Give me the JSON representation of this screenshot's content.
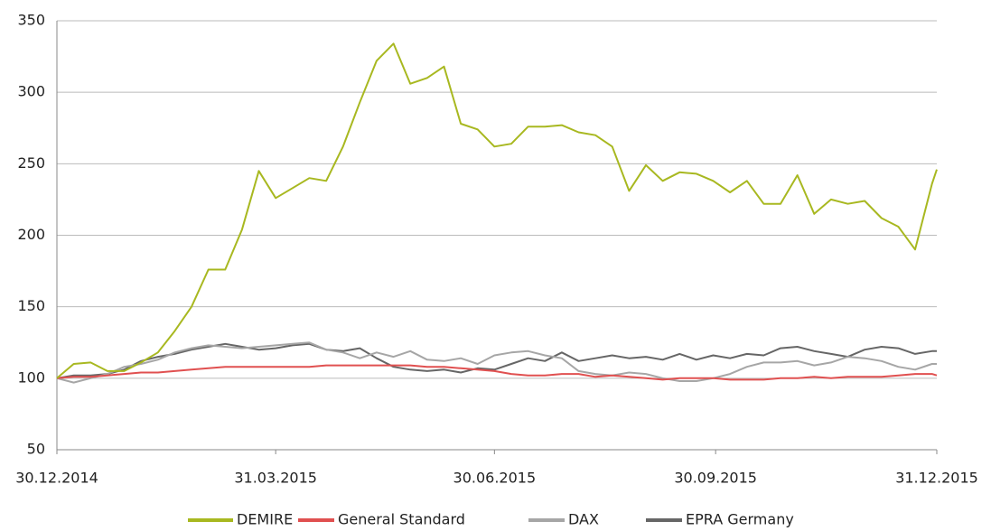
{
  "chart_data": {
    "type": "line",
    "x": [
      "30.12.2014",
      "06.01.2015",
      "13.01.2015",
      "20.01.2015",
      "27.01.2015",
      "03.02.2015",
      "10.02.2015",
      "17.02.2015",
      "24.02.2015",
      "03.03.2015",
      "10.03.2015",
      "17.03.2015",
      "24.03.2015",
      "31.03.2015",
      "07.04.2015",
      "14.04.2015",
      "21.04.2015",
      "28.04.2015",
      "05.05.2015",
      "12.05.2015",
      "19.05.2015",
      "26.05.2015",
      "02.06.2015",
      "09.06.2015",
      "16.06.2015",
      "23.06.2015",
      "30.06.2015",
      "07.07.2015",
      "14.07.2015",
      "21.07.2015",
      "28.07.2015",
      "04.08.2015",
      "11.08.2015",
      "18.08.2015",
      "25.08.2015",
      "01.09.2015",
      "08.09.2015",
      "15.09.2015",
      "22.09.2015",
      "29.09.2015",
      "06.10.2015",
      "13.10.2015",
      "20.10.2015",
      "27.10.2015",
      "03.11.2015",
      "10.11.2015",
      "17.11.2015",
      "24.11.2015",
      "01.12.2015",
      "08.12.2015",
      "15.12.2015",
      "22.12.2015",
      "29.12.2015",
      "31.12.2015"
    ],
    "series": [
      {
        "name": "DEMIRE",
        "color": "#a8b820",
        "values": [
          100,
          110,
          111,
          105,
          105,
          111,
          118,
          133,
          150,
          176,
          176,
          204,
          245,
          226,
          233,
          240,
          238,
          262,
          293,
          322,
          334,
          306,
          310,
          318,
          278,
          274,
          262,
          264,
          276,
          276,
          277,
          272,
          270,
          262,
          231,
          249,
          238,
          244,
          243,
          238,
          230,
          238,
          222,
          222,
          242,
          215,
          225,
          222,
          224,
          212,
          206,
          190,
          236,
          246
        ]
      },
      {
        "name": "General Standard",
        "color": "#e05050",
        "values": [
          100,
          101,
          101,
          102,
          103,
          104,
          104,
          105,
          106,
          107,
          108,
          108,
          108,
          108,
          108,
          108,
          109,
          109,
          109,
          109,
          109,
          109,
          108,
          108,
          107,
          106,
          105,
          103,
          102,
          102,
          103,
          103,
          101,
          102,
          101,
          100,
          99,
          100,
          100,
          100,
          99,
          99,
          99,
          100,
          100,
          101,
          100,
          101,
          101,
          101,
          102,
          103,
          103,
          102
        ]
      },
      {
        "name": "DAX",
        "color": "#a6a6a6",
        "values": [
          100,
          97,
          100,
          103,
          108,
          110,
          113,
          118,
          121,
          123,
          122,
          121,
          122,
          123,
          124,
          125,
          120,
          118,
          114,
          118,
          115,
          119,
          113,
          112,
          114,
          110,
          116,
          118,
          119,
          116,
          114,
          105,
          103,
          102,
          104,
          103,
          100,
          98,
          98,
          100,
          103,
          108,
          111,
          111,
          112,
          109,
          111,
          115,
          114,
          112,
          108,
          106,
          110,
          110
        ]
      },
      {
        "name": "EPRA Germany",
        "color": "#666666",
        "values": [
          100,
          102,
          102,
          103,
          106,
          112,
          115,
          117,
          120,
          122,
          124,
          122,
          120,
          121,
          123,
          124,
          120,
          119,
          121,
          114,
          108,
          106,
          105,
          106,
          104,
          107,
          106,
          110,
          114,
          112,
          118,
          112,
          114,
          116,
          114,
          115,
          113,
          117,
          113,
          116,
          114,
          117,
          116,
          121,
          122,
          119,
          117,
          115,
          120,
          122,
          121,
          117,
          119,
          119
        ]
      }
    ],
    "xlim": [
      "30.12.2014",
      "31.12.2015"
    ],
    "xticks": [
      "30.12.2014",
      "31.03.2015",
      "30.06.2015",
      "30.09.2015",
      "31.12.2015"
    ],
    "ylim": [
      50,
      350
    ],
    "yticks": [
      50,
      100,
      150,
      200,
      250,
      300,
      350
    ],
    "grid": true,
    "legend": "bottom"
  }
}
